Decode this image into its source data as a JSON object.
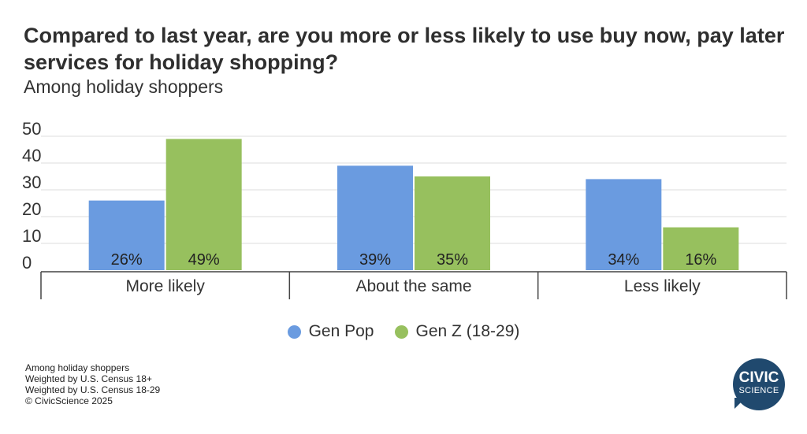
{
  "header": {
    "title": "Compared to last year, are you more or less likely to use buy now, pay later services for holiday shopping?",
    "subtitle": "Among holiday shoppers"
  },
  "chart_data": {
    "type": "bar",
    "title": "Compared to last year, are you more or less likely to use buy now, pay later services for holiday shopping?",
    "subtitle": "Among holiday shoppers",
    "categories": [
      "More likely",
      "About the same",
      "Less likely"
    ],
    "series": [
      {
        "name": "Gen Pop",
        "color": "#6a9be0",
        "values": [
          26,
          39,
          34
        ],
        "labels": [
          "26%",
          "39%",
          "34%"
        ]
      },
      {
        "name": "Gen Z (18-29)",
        "color": "#97c05e",
        "values": [
          49,
          35,
          16
        ],
        "labels": [
          "49%",
          "35%",
          "16%"
        ]
      }
    ],
    "yticks": [
      "0",
      "10",
      "20",
      "30",
      "40",
      "50"
    ],
    "ylim": [
      0,
      50
    ],
    "xlabel": "",
    "ylabel": "",
    "grid": true,
    "legend": "bottom-center"
  },
  "legend": [
    {
      "label": "Gen Pop",
      "color": "#6a9be0"
    },
    {
      "label": "Gen Z (18-29)",
      "color": "#97c05e"
    }
  ],
  "footnotes": [
    "Among holiday shoppers",
    "Weighted by U.S. Census 18+",
    "Weighted by U.S. Census 18-29",
    "© CivicScience 2025"
  ],
  "logo": {
    "line1": "CIVIC",
    "line2": "SCIENCE",
    "color": "#20496e"
  }
}
